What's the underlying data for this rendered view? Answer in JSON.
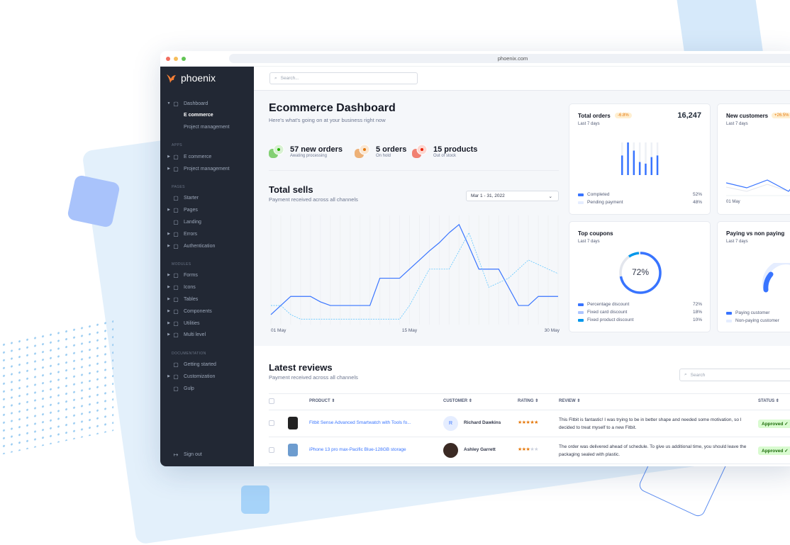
{
  "browser": {
    "url": "phoenix.com"
  },
  "sidebar": {
    "brand": "phoenix",
    "items": [
      {
        "label": "Dashboard",
        "icon": "monitor-icon",
        "caret": true,
        "expanded": true
      },
      {
        "label": "E commerce",
        "active": true
      },
      {
        "label": "Project management"
      },
      {
        "header": "APPS"
      },
      {
        "label": "E commerce",
        "icon": "cart-icon",
        "caret": true
      },
      {
        "label": "Project management",
        "icon": "clipboard-icon",
        "caret": true
      },
      {
        "header": "PAGES"
      },
      {
        "label": "Starter",
        "icon": "compass-icon"
      },
      {
        "label": "Pages",
        "icon": "layout-icon",
        "caret": true
      },
      {
        "label": "Landing",
        "icon": "monitor-icon"
      },
      {
        "label": "Errors",
        "icon": "alert-triangle-icon",
        "caret": true
      },
      {
        "label": "Authentication",
        "icon": "lock-icon",
        "caret": true
      },
      {
        "header": "MODULES"
      },
      {
        "label": "Forms",
        "icon": "file-text-icon",
        "caret": true
      },
      {
        "label": "Icons",
        "icon": "grid-icon",
        "caret": true
      },
      {
        "label": "Tables",
        "icon": "columns-icon",
        "caret": true
      },
      {
        "label": "Components",
        "icon": "package-icon",
        "caret": true
      },
      {
        "label": "Utilities",
        "icon": "tool-icon",
        "caret": true
      },
      {
        "label": "Multi level",
        "icon": "layers-icon",
        "caret": true
      },
      {
        "header": "DOCUMENTATION"
      },
      {
        "label": "Getting started",
        "icon": "life-buoy-icon"
      },
      {
        "label": "Customization",
        "icon": "settings-icon",
        "caret": true
      },
      {
        "label": "Gulp",
        "icon": "gulp-icon"
      }
    ],
    "signout": "Sign out"
  },
  "topbar": {
    "search_placeholder": "Search..."
  },
  "dashboard": {
    "title": "Ecommerce Dashboard",
    "subtitle": "Here's what's going on at your business right now"
  },
  "stats": [
    {
      "value": "57 new orders",
      "label": "Awating processing",
      "icon": "star-icon",
      "color": "#25b003"
    },
    {
      "value": "5 orders",
      "label": "On hold",
      "icon": "pause-icon",
      "color": "#e5780b"
    },
    {
      "value": "15 products",
      "label": "Out of stock",
      "icon": "x-icon",
      "color": "#ec1f00"
    }
  ],
  "total_sells": {
    "title": "Total sells",
    "subtitle": "Payment received across all channels",
    "date_range": "Mar 1 - 31, 2022"
  },
  "chart_data": {
    "type": "line",
    "x": [
      1,
      2,
      3,
      4,
      5,
      6,
      7,
      8,
      9,
      10,
      11,
      12,
      13,
      14,
      15,
      16,
      17,
      18,
      19,
      20,
      21,
      22,
      23,
      24,
      25,
      26,
      27,
      28,
      29,
      30
    ],
    "tick_labels": [
      "01 May",
      "15 May",
      "30 May"
    ],
    "series": [
      {
        "style": "solid",
        "color": "#3874ff",
        "values": [
          11,
          21,
          31,
          31,
          31,
          25,
          21,
          21,
          21,
          21,
          21,
          51,
          51,
          51,
          61,
          71,
          81,
          90,
          101,
          110,
          86,
          61,
          61,
          61,
          41,
          21,
          21,
          31,
          31,
          31
        ]
      },
      {
        "style": "dashed",
        "color": "#60c6ff",
        "values": [
          21,
          21,
          11,
          6,
          6,
          6,
          6,
          6,
          6,
          6,
          6,
          6,
          6,
          6,
          21,
          41,
          61,
          61,
          61,
          81,
          101,
          71,
          41,
          46,
          51,
          61,
          71,
          66,
          61,
          56
        ]
      }
    ],
    "grid": "vertical",
    "xlabel": "",
    "ylabel": ""
  },
  "cards": {
    "total_orders": {
      "title": "Total orders",
      "badge": "-6.8%",
      "value": "16,247",
      "period": "Last 7 days",
      "bars_completed_pct": [
        60,
        100,
        75,
        40,
        35,
        55,
        60
      ],
      "legend": [
        {
          "label": "Completed",
          "value": "52%",
          "color": "#3874ff"
        },
        {
          "label": "Pending payment",
          "value": "48%",
          "color": "#e5edff"
        }
      ]
    },
    "new_customers": {
      "title": "New customers",
      "badge": "+26.5%",
      "period": "Last 7 days",
      "axis_label": "01 May"
    },
    "top_coupons": {
      "title": "Top coupons",
      "period": "Last 7 days",
      "center": "72%",
      "legend": [
        {
          "label": "Percentage discount",
          "value": "72%",
          "color": "#3874ff"
        },
        {
          "label": "Fixed card discount",
          "value": "18%",
          "color": "#adc5ff"
        },
        {
          "label": "Fixed product discount",
          "value": "10%",
          "color": "#0097eb"
        }
      ]
    },
    "paying": {
      "title": "Paying vs non paying",
      "period": "Last 7 days",
      "legend": [
        {
          "label": "Paying customer",
          "color": "#3874ff"
        },
        {
          "label": "Non-paying customer",
          "color": "#e5edff"
        }
      ]
    }
  },
  "reviews": {
    "title": "Latest reviews",
    "subtitle": "Payment received across all channels",
    "search_placeholder": "Search",
    "columns": [
      "PRODUCT",
      "CUSTOMER",
      "RATING",
      "REVIEW",
      "STATUS"
    ],
    "rows": [
      {
        "product": "Fitbit Sense Advanced Smartwatch with Tools fo...",
        "customer": "Richard Dawkins",
        "avatar": "R",
        "rating": 5,
        "stars": "★★★★★",
        "review": "This Fitbit is fantastic! I was trying to be in better shape and needed some motivation, so I decided to treat myself to a new Fitbit.",
        "status": "Approved"
      },
      {
        "product": "iPhone 13 pro max-Pacific Blue-128GB storage",
        "customer": "Ashley Garrett",
        "rating": 3,
        "stars": "★★★",
        "stars_empty": "★★",
        "review": "The order was delivered ahead of schedule. To give us additional time, you should leave the packaging sealed with plastic.",
        "status": "Approved"
      }
    ]
  }
}
